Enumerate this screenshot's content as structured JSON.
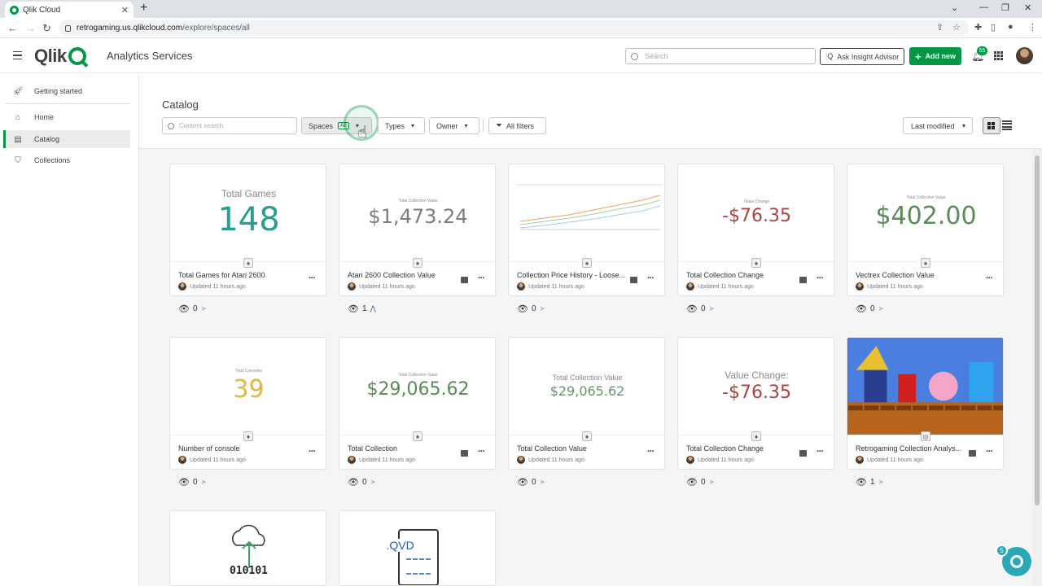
{
  "browser": {
    "tab_title": "Qlik Cloud",
    "url_host": "retrogaming.us.qlikcloud.com",
    "url_path": "/explore/spaces/all"
  },
  "header": {
    "product": "Analytics Services",
    "search_placeholder": "Search",
    "insight_label": "Ask Insight Advisor",
    "add_new_label": "Add new",
    "notification_count": "55"
  },
  "sidebar": {
    "items": [
      {
        "label": "Getting started",
        "icon": "rocket-icon"
      },
      {
        "label": "Home",
        "icon": "home-icon"
      },
      {
        "label": "Catalog",
        "icon": "catalog-icon"
      },
      {
        "label": "Collections",
        "icon": "bookmark-icon"
      }
    ],
    "active": "Catalog"
  },
  "catalog": {
    "title": "Catalog",
    "search_placeholder": "Content search",
    "filters": {
      "spaces": "Spaces",
      "spaces_tag": "All",
      "types": "Types",
      "owner": "Owner",
      "all_filters": "All filters"
    },
    "sort_label": "Last modified"
  },
  "cards": [
    {
      "title": "Total Games for Atari 2600",
      "updated": "Updated 11 hours ago",
      "views": "0",
      "thumb_label": "Total Games",
      "thumb_value": "148",
      "value_color": "#2a9d8f"
    },
    {
      "title": "Atari 2600 Collection Value",
      "updated": "Updated 11 hours ago",
      "views": "1",
      "thumb_label": "Total Collection Value",
      "thumb_value": "$1,473.24",
      "value_color": "#7d7d7d"
    },
    {
      "title": "Collection Price History - Loose...",
      "updated": "Updated 11 hours ago",
      "views": "0"
    },
    {
      "title": "Total Collection Change",
      "updated": "Updated 11 hours ago",
      "views": "0",
      "thumb_label": "Value Change",
      "thumb_value": "-$76.35",
      "value_color": "#a94442"
    },
    {
      "title": "Vectrex Collection Value",
      "updated": "Updated 11 hours ago",
      "views": "0",
      "thumb_label": "Total Collection Value",
      "thumb_value": "$402.00",
      "value_color": "#5b8a5b"
    },
    {
      "title": "Number of console",
      "updated": "Updated 11 hours ago",
      "views": "0",
      "thumb_label": "Total Consoles",
      "thumb_value": "39",
      "value_color": "#e0b83c"
    },
    {
      "title": "Total Collection",
      "updated": "Updated 11 hours ago",
      "views": "0",
      "thumb_label": "Total Collection Value",
      "thumb_value": "$29,065.62",
      "value_color": "#5b8a5b"
    },
    {
      "title": "Total Collection Value",
      "updated": "Updated 11 hours ago",
      "views": "0",
      "thumb_label": "Total Collection Value",
      "thumb_value": "$29,065.62",
      "value_color": "#6f8f6f"
    },
    {
      "title": "Total Collection Change",
      "updated": "Updated 11 hours ago",
      "views": "0",
      "thumb_label": "Value Change:",
      "thumb_value": "-$76.35",
      "value_color": "#a94442"
    },
    {
      "title": "Retrogaming Collection Analys...",
      "updated": "Updated 11 hours ago",
      "views": "1"
    }
  ],
  "bottom_cards": [
    {
      "thumb_text": "010101"
    },
    {
      "thumb_text": ".QVD"
    }
  ],
  "assistant_badge": "5"
}
